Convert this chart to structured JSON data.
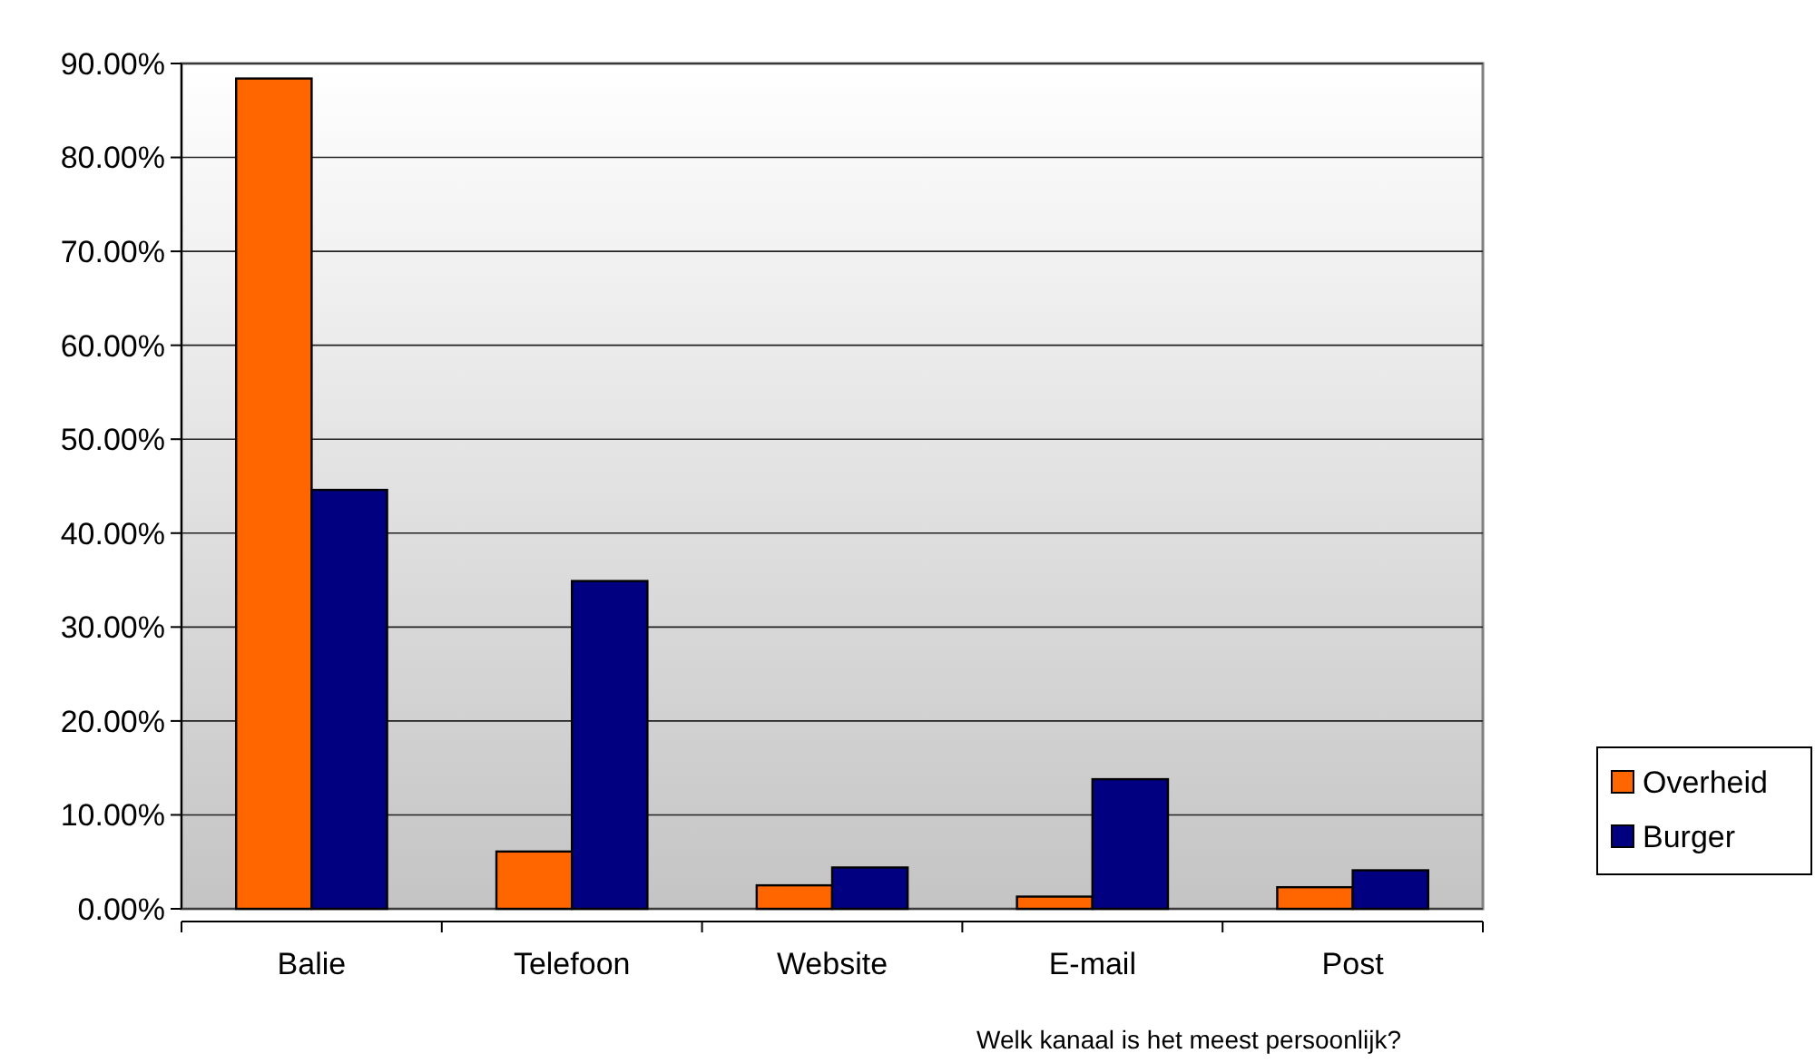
{
  "chart_data": {
    "type": "bar",
    "xlabel": "Welk kanaal is het meest persoonlijk?",
    "categories": [
      "Balie",
      "Telefoon",
      "Website",
      "E-mail",
      "Post"
    ],
    "series": [
      {
        "name": "Overheid",
        "color": "#ff6600",
        "values": [
          88.4,
          6.1,
          2.5,
          1.3,
          2.3
        ]
      },
      {
        "name": "Burger",
        "color": "#000080",
        "values": [
          44.6,
          34.9,
          4.4,
          13.8,
          4.1
        ]
      }
    ],
    "ylim": [
      0,
      90
    ],
    "yticks": [
      {
        "value": 0,
        "label": "0.00%"
      },
      {
        "value": 10,
        "label": "10.00%"
      },
      {
        "value": 20,
        "label": "20.00%"
      },
      {
        "value": 30,
        "label": "30.00%"
      },
      {
        "value": 40,
        "label": "40.00%"
      },
      {
        "value": 50,
        "label": "50.00%"
      },
      {
        "value": 60,
        "label": "60.00%"
      },
      {
        "value": 70,
        "label": "70.00%"
      },
      {
        "value": 80,
        "label": "80.00%"
      },
      {
        "value": 90,
        "label": "90.00%"
      }
    ],
    "grid": "y",
    "legend": "right"
  }
}
